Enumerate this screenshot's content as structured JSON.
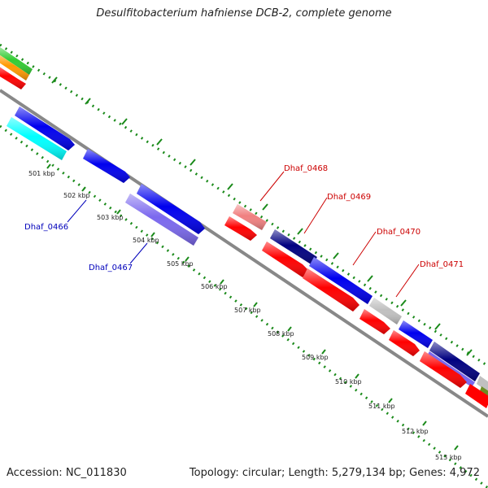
{
  "title": "Desulfitobacterium hafniense DCB-2, complete genome",
  "footer": {
    "accession_label": "Accession: NC_011830",
    "summary": "Topology: circular; Length: 5,279,134 bp; Genes: 4,972"
  },
  "ticks": [
    "501 kbp",
    "502 kbp",
    "503 kbp",
    "504 kbp",
    "505 kbp",
    "506 kbp",
    "507 kbp",
    "508 kbp",
    "509 kbp",
    "510 kbp",
    "511 kbp",
    "512 kbp",
    "513 kbp"
  ],
  "gene_labels": [
    {
      "name": "Dhaf_0466",
      "color": "#0000bb"
    },
    {
      "name": "Dhaf_0467",
      "color": "#0000bb"
    },
    {
      "name": "Dhaf_0468",
      "color": "#cc0000"
    },
    {
      "name": "Dhaf_0469",
      "color": "#cc0000"
    },
    {
      "name": "Dhaf_0470",
      "color": "#cc0000"
    },
    {
      "name": "Dhaf_0471",
      "color": "#cc0000"
    }
  ],
  "colors": {
    "backbone": "#888888",
    "dotted_ring": "#1a8a1a",
    "red_feature": "#ff0000",
    "blue_feature": "#0000ee",
    "navy_feature": "#000080",
    "cyan_feature": "#00ffff",
    "slate_feature": "#7b68ee",
    "pink_feature": "#f08080",
    "gray_feature": "#c0c0c0",
    "green_feature": "#33cc33",
    "orange_feature": "#ff9900"
  }
}
